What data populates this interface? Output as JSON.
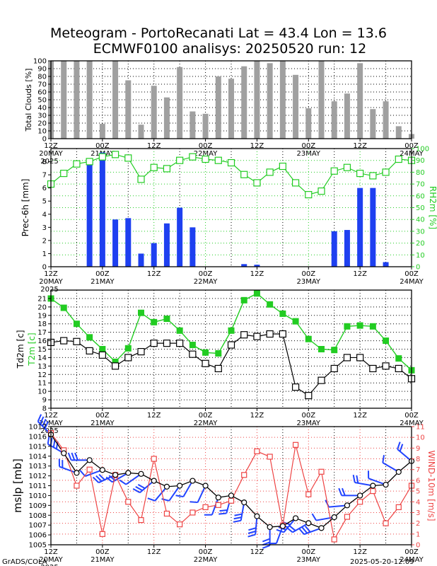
{
  "title_line1": "Meteogram - PortoRecanati Lat = 43.4 Lon = 13.6",
  "title_line2": "ECMWF0100 analisys: 20250520 run: 12",
  "footer_left": "GrADS/COLA",
  "footer_right": "2025-05-20-12:09",
  "colors": {
    "cloud": "#a0a0a0",
    "precip": "#1e40f0",
    "rh": "#22cc22",
    "t2m": "#22cc22",
    "td": "#000000",
    "mslp": "#000000",
    "wind": "#ee4444",
    "barb": "#2244ff"
  },
  "time_axis": {
    "ticks": [
      {
        "top": "12Z",
        "bottom": "20MAY"
      },
      {
        "top": "00Z",
        "bottom": "21MAY"
      },
      {
        "top": "12Z",
        "bottom": ""
      },
      {
        "top": "00Z",
        "bottom": "22MAY"
      },
      {
        "top": "12Z",
        "bottom": ""
      },
      {
        "top": "00Z",
        "bottom": "23MAY"
      },
      {
        "top": "12Z",
        "bottom": ""
      },
      {
        "top": "00Z",
        "bottom": "24MAY"
      }
    ],
    "year": "2025"
  },
  "chart_data": [
    {
      "type": "bar",
      "ylabel": "Total Clouds [%]",
      "ylim": [
        0,
        100
      ],
      "yticks": [
        "0",
        "10",
        "20",
        "30",
        "40",
        "50",
        "60",
        "70",
        "80",
        "90",
        "100"
      ],
      "hours": [
        0,
        3,
        6,
        9,
        12,
        15,
        18,
        21,
        24,
        27,
        30,
        33,
        36,
        39,
        42,
        45,
        48,
        51,
        54,
        57,
        60,
        63,
        66,
        69,
        72,
        75,
        78,
        81,
        84
      ],
      "values": [
        100,
        100,
        100,
        100,
        19,
        100,
        75,
        18,
        68,
        53,
        92,
        35,
        32,
        80,
        77,
        93,
        100,
        97,
        100,
        82,
        39,
        100,
        48,
        58,
        97,
        38,
        48,
        16,
        6
      ]
    },
    {
      "type": "bar",
      "ylabel": "Prec-6h [mm]",
      "ylim": [
        0,
        9
      ],
      "yticks": [
        "0",
        "1",
        "2",
        "3",
        "4",
        "5",
        "6",
        "7",
        "8"
      ],
      "hours": [
        0,
        3,
        6,
        9,
        12,
        15,
        18,
        21,
        24,
        27,
        30,
        33,
        36,
        39,
        42,
        45,
        48,
        51,
        54,
        57,
        60,
        63,
        66,
        69,
        72,
        75,
        78,
        81,
        84
      ],
      "values": [
        0,
        0,
        0,
        7.9,
        8.7,
        3.6,
        3.7,
        1.0,
        1.8,
        3.3,
        4.5,
        3.0,
        0,
        0,
        0,
        0.2,
        0.15,
        0,
        0,
        0,
        0,
        0,
        2.7,
        2.8,
        6.0,
        6.0,
        0.35,
        0,
        0
      ],
      "series2": {
        "name": "RH2m [%]",
        "type": "line",
        "ylim": [
          0,
          100
        ],
        "yticks": [
          "0",
          "10",
          "20",
          "30",
          "40",
          "50",
          "60",
          "70",
          "80",
          "90",
          "100"
        ],
        "values": [
          70,
          79,
          87,
          89,
          93,
          95,
          92,
          74,
          84,
          83,
          90,
          93,
          91,
          90,
          88,
          78,
          71,
          80,
          85,
          71,
          61,
          64,
          81,
          84,
          79,
          77,
          80,
          91,
          90
        ]
      }
    },
    {
      "type": "line",
      "ylabel": "Td2m [c]",
      "ylabel2": "T2m [c]",
      "ylim": [
        8,
        22
      ],
      "yticks": [
        "8",
        "9",
        "10",
        "11",
        "12",
        "13",
        "14",
        "15",
        "16",
        "17",
        "18",
        "19",
        "20",
        "21"
      ],
      "hours": [
        0,
        3,
        6,
        9,
        12,
        15,
        18,
        21,
        24,
        27,
        30,
        33,
        36,
        39,
        42,
        45,
        48,
        51,
        54,
        57,
        60,
        63,
        66,
        69,
        72,
        75,
        78,
        81,
        84
      ],
      "series": [
        {
          "name": "T2m [c]",
          "values": [
            21,
            19.9,
            18,
            16.4,
            15,
            13.5,
            15.1,
            19.3,
            18.2,
            18.6,
            17.2,
            15.5,
            14.6,
            14.5,
            17.2,
            20.8,
            21.6,
            20.3,
            19.2,
            18.3,
            16.2,
            15,
            14.9,
            17.7,
            17.8,
            17.7,
            16,
            13.9,
            12.5
          ]
        },
        {
          "name": "Td2m [c]",
          "values": [
            15.8,
            16,
            15.9,
            14.8,
            14.3,
            13,
            14,
            14.7,
            15.7,
            15.7,
            15.7,
            14.4,
            13.3,
            12.7,
            15.5,
            16.7,
            16.5,
            16.8,
            16.8,
            10.5,
            9.5,
            11.3,
            12.7,
            14,
            14,
            12.7,
            13,
            12.7,
            11.5
          ]
        }
      ]
    },
    {
      "type": "line",
      "ylabel": "mslp [mb]",
      "ylabel2": "WIND-10m [m/s]",
      "ylim": [
        1005,
        1017
      ],
      "yticks": [
        "1005",
        "1006",
        "1007",
        "1008",
        "1009",
        "1010",
        "1011",
        "1012",
        "1013",
        "1014",
        "1015",
        "1016",
        "1017"
      ],
      "ylim2": [
        0,
        11
      ],
      "yticks2": [
        "0",
        "1",
        "2",
        "3",
        "4",
        "5",
        "6",
        "7",
        "8",
        "9",
        "10",
        "11"
      ],
      "hours": [
        0,
        3,
        6,
        9,
        12,
        15,
        18,
        21,
        24,
        27,
        30,
        33,
        36,
        39,
        42,
        45,
        48,
        51,
        54,
        57,
        60,
        63,
        66,
        69,
        72,
        75,
        78,
        81,
        84
      ],
      "series": [
        {
          "name": "mslp",
          "values": [
            1016.2,
            1014.3,
            1012.3,
            1013.6,
            1012.6,
            1012.1,
            1012.3,
            1012.2,
            1011.5,
            1010.9,
            1011.0,
            1011.5,
            1011.0,
            1009.8,
            1010.0,
            1009.3,
            1007.9,
            1006.8,
            1006.9,
            1007.7,
            1007.2,
            1006.7,
            1007.8,
            1009.0,
            1010.0,
            1011.0,
            1011.1,
            1012.4,
            1013.5
          ]
        },
        {
          "name": "wind",
          "values": [
            10.4,
            8.8,
            5.5,
            7.0,
            1.0,
            6.5,
            4.0,
            2.3,
            8.0,
            2.9,
            1.9,
            3.0,
            3.5,
            3.7,
            4.1,
            6.5,
            8.7,
            8.2,
            1.8,
            9.3,
            4.7,
            6.8,
            0.5,
            2.6,
            4.0,
            5.0,
            2.0,
            3.5,
            5.5
          ]
        }
      ]
    }
  ]
}
